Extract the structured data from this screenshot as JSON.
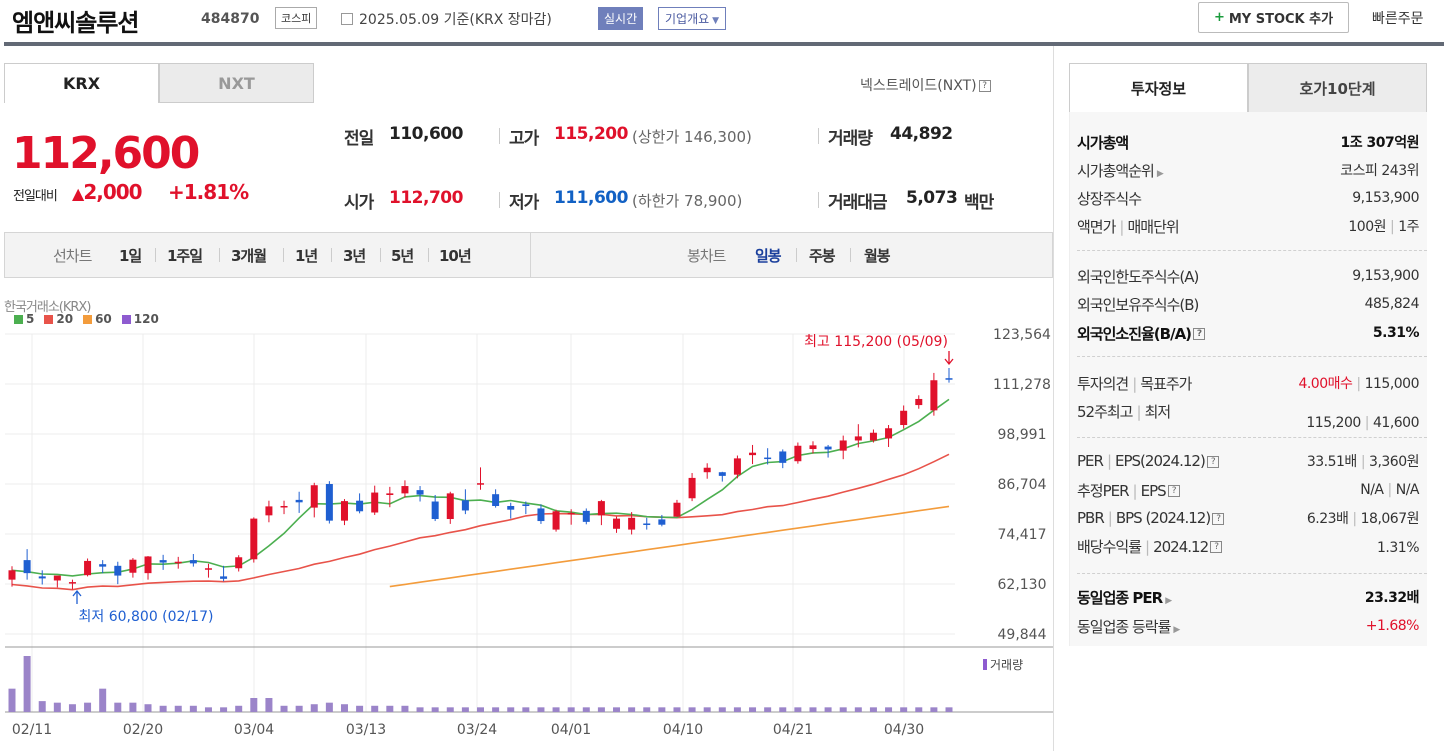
{
  "header": {
    "title": "엠앤씨솔루션",
    "code": "484870",
    "market": "코스피",
    "date": "2025.05.09 기준(KRX 장마감)",
    "live": "실시간",
    "corp": "기업개요",
    "my_stock": "MY STOCK 추가",
    "quick_order": "빠른주문"
  },
  "tabs": {
    "krx": "KRX",
    "nxt": "NXT",
    "nxt_link": "넥스트레이드(NXT)"
  },
  "quote": {
    "price": "112,600",
    "change_label": "전일대비",
    "change": "2,000",
    "change_pct": "+1.81%",
    "prev_label": "전일",
    "prev": "110,600",
    "high_label": "고가",
    "high": "115,200",
    "upper_limit": "(상한가 146,300)",
    "volume_label": "거래량",
    "volume": "44,892",
    "open_label": "시가",
    "open": "112,700",
    "low_label": "저가",
    "low": "111,600",
    "lower_limit": "(하한가 78,900)",
    "amount_label": "거래대금",
    "amount": "5,073",
    "amount_unit": "백만"
  },
  "period": {
    "line_label": "선차트",
    "line": [
      "1일",
      "1주일",
      "3개월",
      "1년",
      "3년",
      "5년",
      "10년"
    ],
    "candle_label": "봉차트",
    "candle": [
      "일봉",
      "주봉",
      "월봉"
    ]
  },
  "chart": {
    "exchange": "한국거래소(KRX)",
    "ma": [
      {
        "label": "5",
        "color": "#4caf50"
      },
      {
        "label": "20",
        "color": "#e8534a"
      },
      {
        "label": "60",
        "color": "#f39c3c"
      },
      {
        "label": "120",
        "color": "#8e5bd0"
      }
    ],
    "max_label": "최고 115,200 (05/09)",
    "min_label": "최저 60,800 (02/17)",
    "volume_label": "거래량",
    "up_color": "#e0112b",
    "down_color": "#1f5fd1"
  },
  "chart_data": {
    "type": "candlestick",
    "x_ticks": [
      "02/11",
      "02/20",
      "03/04",
      "03/13",
      "03/24",
      "04/01",
      "04/10",
      "04/21",
      "04/30"
    ],
    "y_ticks": [
      "123,564",
      "111,278",
      "98,991",
      "86,704",
      "74,417",
      "62,130",
      "49,844"
    ],
    "ylim": [
      49844,
      123564
    ],
    "candles": [
      {
        "o": 63200,
        "h": 66500,
        "l": 61500,
        "c": 65500,
        "v": 15
      },
      {
        "o": 68000,
        "h": 70700,
        "l": 63200,
        "c": 64800,
        "v": 36
      },
      {
        "o": 64000,
        "h": 65500,
        "l": 62000,
        "c": 63500,
        "v": 7
      },
      {
        "o": 63000,
        "h": 64000,
        "l": 61300,
        "c": 64200,
        "v": 6
      },
      {
        "o": 62500,
        "h": 63200,
        "l": 60800,
        "c": 62600,
        "v": 5
      },
      {
        "o": 64300,
        "h": 68400,
        "l": 64000,
        "c": 67800,
        "v": 6
      },
      {
        "o": 67000,
        "h": 68000,
        "l": 64800,
        "c": 66400,
        "v": 15
      },
      {
        "o": 66600,
        "h": 67600,
        "l": 62100,
        "c": 64200,
        "v": 6
      },
      {
        "o": 64900,
        "h": 68500,
        "l": 63700,
        "c": 68100,
        "v": 6
      },
      {
        "o": 64800,
        "h": 69000,
        "l": 63200,
        "c": 68900,
        "v": 5
      },
      {
        "o": 68000,
        "h": 69300,
        "l": 65600,
        "c": 67400,
        "v": 4
      },
      {
        "o": 67600,
        "h": 68800,
        "l": 65900,
        "c": 67600,
        "v": 4
      },
      {
        "o": 68000,
        "h": 69500,
        "l": 66400,
        "c": 67200,
        "v": 4
      },
      {
        "o": 65800,
        "h": 67100,
        "l": 63700,
        "c": 66000,
        "v": 3
      },
      {
        "o": 64000,
        "h": 66600,
        "l": 62800,
        "c": 63400,
        "v": 3
      },
      {
        "o": 66000,
        "h": 69200,
        "l": 65200,
        "c": 68700,
        "v": 4
      },
      {
        "o": 68200,
        "h": 78500,
        "l": 67400,
        "c": 78200,
        "v": 9
      },
      {
        "o": 79000,
        "h": 82600,
        "l": 77300,
        "c": 81200,
        "v": 9
      },
      {
        "o": 81200,
        "h": 82600,
        "l": 79300,
        "c": 81300,
        "v": 4
      },
      {
        "o": 82800,
        "h": 84800,
        "l": 79600,
        "c": 82200,
        "v": 4
      },
      {
        "o": 80900,
        "h": 87000,
        "l": 78500,
        "c": 86400,
        "v": 5
      },
      {
        "o": 86700,
        "h": 87400,
        "l": 77000,
        "c": 77700,
        "v": 6
      },
      {
        "o": 77700,
        "h": 83000,
        "l": 76600,
        "c": 82500,
        "v": 5
      },
      {
        "o": 82600,
        "h": 84400,
        "l": 79500,
        "c": 80000,
        "v": 4
      },
      {
        "o": 79700,
        "h": 86300,
        "l": 79100,
        "c": 84600,
        "v": 4
      },
      {
        "o": 84000,
        "h": 86000,
        "l": 81000,
        "c": 84400,
        "v": 4
      },
      {
        "o": 84400,
        "h": 87600,
        "l": 83400,
        "c": 86200,
        "v": 4
      },
      {
        "o": 85200,
        "h": 86200,
        "l": 82400,
        "c": 84100,
        "v": 3
      },
      {
        "o": 82400,
        "h": 84000,
        "l": 77600,
        "c": 78100,
        "v": 3
      },
      {
        "o": 78100,
        "h": 84800,
        "l": 76900,
        "c": 84400,
        "v": 3
      },
      {
        "o": 82700,
        "h": 85400,
        "l": 79300,
        "c": 80200,
        "v": 3
      },
      {
        "o": 86600,
        "h": 90800,
        "l": 85300,
        "c": 86900,
        "v": 3
      },
      {
        "o": 84200,
        "h": 85400,
        "l": 80900,
        "c": 81300,
        "v": 3
      },
      {
        "o": 81300,
        "h": 82100,
        "l": 78200,
        "c": 80400,
        "v": 3
      },
      {
        "o": 81700,
        "h": 82400,
        "l": 79300,
        "c": 81300,
        "v": 3
      },
      {
        "o": 80700,
        "h": 81700,
        "l": 76900,
        "c": 77600,
        "v": 3
      },
      {
        "o": 75500,
        "h": 80400,
        "l": 75000,
        "c": 80000,
        "v": 3
      },
      {
        "o": 79600,
        "h": 80500,
        "l": 76700,
        "c": 79600,
        "v": 3
      },
      {
        "o": 80100,
        "h": 80700,
        "l": 76800,
        "c": 77400,
        "v": 3
      },
      {
        "o": 79000,
        "h": 82800,
        "l": 76600,
        "c": 82500,
        "v": 3
      },
      {
        "o": 75700,
        "h": 78700,
        "l": 74700,
        "c": 78200,
        "v": 3
      },
      {
        "o": 75500,
        "h": 79800,
        "l": 74300,
        "c": 78400,
        "v": 3
      },
      {
        "o": 77000,
        "h": 78400,
        "l": 75500,
        "c": 76900,
        "v": 3
      },
      {
        "o": 78000,
        "h": 79100,
        "l": 76300,
        "c": 76700,
        "v": 3
      },
      {
        "o": 78700,
        "h": 82800,
        "l": 78600,
        "c": 82100,
        "v": 3
      },
      {
        "o": 83200,
        "h": 89400,
        "l": 82500,
        "c": 88200,
        "v": 3
      },
      {
        "o": 89600,
        "h": 91800,
        "l": 88000,
        "c": 90700,
        "v": 3
      },
      {
        "o": 89600,
        "h": 89700,
        "l": 87300,
        "c": 88700,
        "v": 3
      },
      {
        "o": 89000,
        "h": 93700,
        "l": 88100,
        "c": 93000,
        "v": 3
      },
      {
        "o": 93800,
        "h": 96300,
        "l": 91600,
        "c": 94400,
        "v": 3
      },
      {
        "o": 93200,
        "h": 95500,
        "l": 91500,
        "c": 93100,
        "v": 3
      },
      {
        "o": 94700,
        "h": 95200,
        "l": 90600,
        "c": 91900,
        "v": 3
      },
      {
        "o": 92300,
        "h": 96900,
        "l": 91700,
        "c": 96100,
        "v": 3
      },
      {
        "o": 95300,
        "h": 97200,
        "l": 94200,
        "c": 96200,
        "v": 3
      },
      {
        "o": 95900,
        "h": 96300,
        "l": 93200,
        "c": 95200,
        "v": 3
      },
      {
        "o": 94900,
        "h": 98600,
        "l": 92800,
        "c": 97400,
        "v": 3
      },
      {
        "o": 97400,
        "h": 101400,
        "l": 95700,
        "c": 98400,
        "v": 3
      },
      {
        "o": 97400,
        "h": 100100,
        "l": 96900,
        "c": 99300,
        "v": 3
      },
      {
        "o": 97900,
        "h": 101200,
        "l": 95800,
        "c": 100400,
        "v": 3
      },
      {
        "o": 101200,
        "h": 106000,
        "l": 100300,
        "c": 104700,
        "v": 3
      },
      {
        "o": 106100,
        "h": 108500,
        "l": 105200,
        "c": 107600,
        "v": 3
      },
      {
        "o": 104800,
        "h": 114000,
        "l": 103500,
        "c": 112200,
        "v": 3
      },
      {
        "o": 112700,
        "h": 115200,
        "l": 111600,
        "c": 112600,
        "v": 3
      }
    ]
  },
  "info": {
    "tab1": "투자정보",
    "tab2": "호가10단계",
    "rows": [
      {
        "l": "시가총액",
        "v": "1조 307억원"
      },
      {
        "l": "시가총액순위",
        "v": "코스피 243위"
      },
      {
        "l": "상장주식수",
        "v": "9,153,900"
      },
      {
        "l": "액면가",
        "l2": "매매단위",
        "v": "100원",
        "v2": "1주"
      },
      {
        "l": "외국인한도주식수(A)",
        "v": "9,153,900"
      },
      {
        "l": "외국인보유주식수(B)",
        "v": "485,824"
      },
      {
        "l": "외국인소진율(B/A)",
        "v": "5.31%"
      },
      {
        "l": "투자의견",
        "l2": "목표주가",
        "v": "4.00매수",
        "v2": "115,000"
      },
      {
        "l": "52주최고",
        "l2": "최저",
        "v": "115,200",
        "v2": "41,600"
      },
      {
        "l": "PER",
        "l2": "EPS(2024.12)",
        "v": "33.51배",
        "v2": "3,360원"
      },
      {
        "l": "추정PER",
        "l2": "EPS",
        "v": "N/A",
        "v2": "N/A"
      },
      {
        "l": "PBR",
        "l2": "BPS (2024.12)",
        "v": "6.23배",
        "v2": "18,067원"
      },
      {
        "l": "배당수익률",
        "l2": "2024.12",
        "v": "1.31%"
      },
      {
        "l": "동일업종 PER",
        "v": "23.32배"
      },
      {
        "l": "동일업종 등락률",
        "v": "+1.68%"
      }
    ]
  }
}
